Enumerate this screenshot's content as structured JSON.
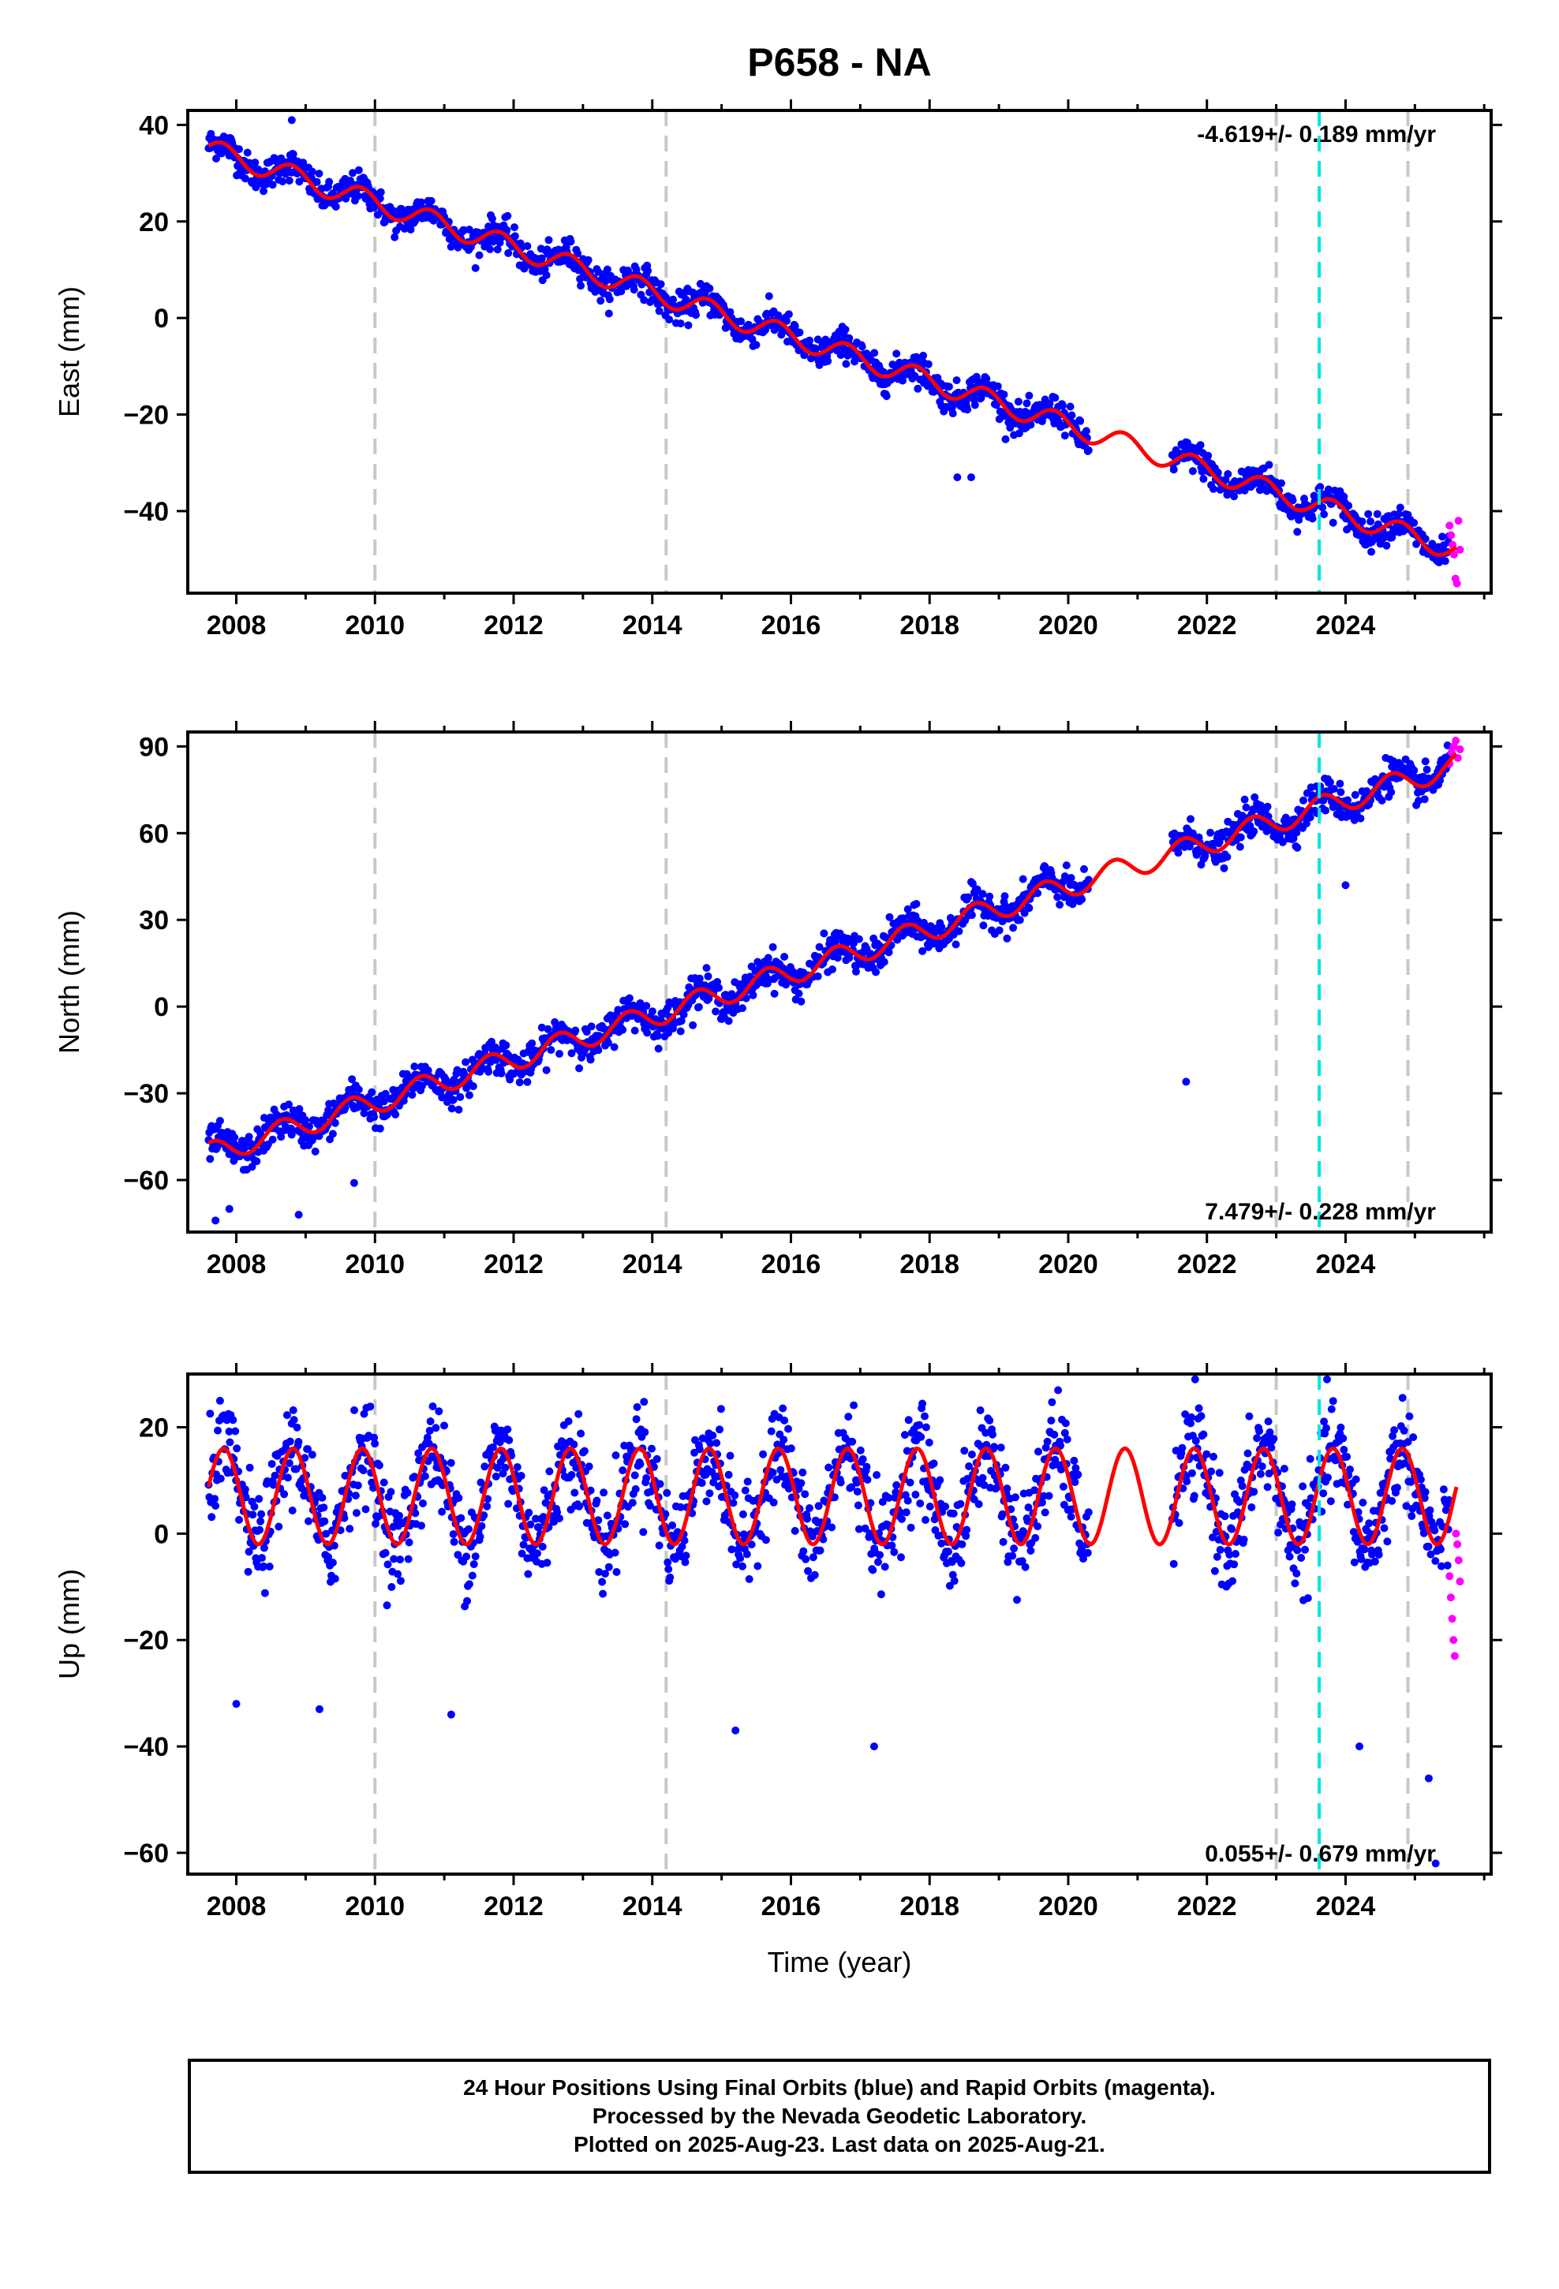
{
  "title": "P658 - NA",
  "caption": [
    "24 Hour Positions Using Final Orbits (blue) and Rapid Orbits (magenta).",
    "Processed by the Nevada Geodetic Laboratory.",
    "Plotted on 2025-Aug-23. Last data on 2025-Aug-21."
  ],
  "colors": {
    "final": "#0000ff",
    "rapid": "#ff00ff",
    "model": "#ff0000",
    "event_gray": "#c8c8c8",
    "event_cyan": "#00e5e5"
  },
  "chart_data": [
    {
      "type": "scatter",
      "ylabel": "East (mm)",
      "xlabel": "",
      "xlim": [
        2007.3,
        2026.1
      ],
      "ylim": [
        -57,
        43
      ],
      "yticks": [
        40,
        20,
        0,
        -20,
        -40
      ],
      "xticks": [
        2008,
        2010,
        2012,
        2014,
        2016,
        2018,
        2020,
        2022,
        2024
      ],
      "rate_annotation": "-4.619+/- 0.189 mm/yr",
      "rate_position": "top-right",
      "event_lines_gray": [
        2010.0,
        2014.2,
        2023.0,
        2024.9
      ],
      "event_lines_cyan": [
        2023.62
      ],
      "model": {
        "start": 2007.6,
        "end": 2025.6,
        "value_at_start": 35.0,
        "rate": -4.619,
        "amp_annual": 2.2,
        "phase": 0.3
      },
      "final_orbits_series": {
        "coverage": [
          [
            2007.6,
            2020.3
          ],
          [
            2021.5,
            2025.5
          ]
        ],
        "noise_sd": 1.6,
        "outliers": [
          [
            2008.8,
            41
          ],
          [
            2018.4,
            -33
          ],
          [
            2018.6,
            -33
          ]
        ]
      },
      "rapid_orbits_series": {
        "x_range": [
          2025.5,
          2025.65
        ],
        "values": [
          -43,
          -45,
          -47,
          -49,
          -54,
          -55,
          -42,
          -48
        ]
      }
    },
    {
      "type": "scatter",
      "ylabel": "North (mm)",
      "xlabel": "",
      "xlim": [
        2007.3,
        2026.1
      ],
      "ylim": [
        -78,
        95
      ],
      "yticks": [
        90,
        60,
        30,
        0,
        -30,
        -60
      ],
      "xticks": [
        2008,
        2010,
        2012,
        2014,
        2016,
        2018,
        2020,
        2022,
        2024
      ],
      "rate_annotation": "7.479+/- 0.228 mm/yr",
      "rate_position": "bottom-right",
      "event_lines_gray": [
        2010.0,
        2014.2,
        2023.0,
        2024.9
      ],
      "event_lines_cyan": [
        2023.62
      ],
      "model": {
        "start": 2007.6,
        "end": 2025.6,
        "value_at_start": -51.0,
        "rate": 7.479,
        "amp_annual": 4.0,
        "phase": 1.2
      },
      "final_orbits_series": {
        "coverage": [
          [
            2007.6,
            2020.3
          ],
          [
            2021.5,
            2025.5
          ]
        ],
        "noise_sd": 3.0,
        "outliers": [
          [
            2007.7,
            -74
          ],
          [
            2007.9,
            -70
          ],
          [
            2008.9,
            -72
          ],
          [
            2009.7,
            -61
          ],
          [
            2021.7,
            -26
          ],
          [
            2024.0,
            42
          ]
        ]
      },
      "rapid_orbits_series": {
        "x_range": [
          2025.5,
          2025.65
        ],
        "values": [
          84,
          88,
          90,
          92,
          86,
          89
        ]
      }
    },
    {
      "type": "scatter",
      "ylabel": "Up (mm)",
      "xlabel": "Time (year)",
      "xlim": [
        2007.3,
        2026.1
      ],
      "ylim": [
        -64,
        30
      ],
      "yticks": [
        20,
        0,
        -20,
        -40,
        -60
      ],
      "xticks": [
        2008,
        2010,
        2012,
        2014,
        2016,
        2018,
        2020,
        2022,
        2024
      ],
      "rate_annotation": "0.055+/- 0.679 mm/yr",
      "rate_position": "bottom-right",
      "event_lines_gray": [
        2010.0,
        2014.2,
        2023.0,
        2024.9
      ],
      "event_lines_cyan": [
        2023.62
      ],
      "model": {
        "start": 2007.6,
        "end": 2025.6,
        "value_at_start": 7.0,
        "rate": 0.0,
        "amp_annual": 9.0,
        "phase": 0.2
      },
      "final_orbits_series": {
        "coverage": [
          [
            2007.6,
            2020.3
          ],
          [
            2021.5,
            2025.5
          ]
        ],
        "noise_sd": 4.5,
        "outliers": [
          [
            2008.0,
            -32
          ],
          [
            2009.2,
            -33
          ],
          [
            2011.1,
            -34
          ],
          [
            2015.2,
            -37
          ],
          [
            2017.2,
            -40
          ],
          [
            2024.2,
            -40
          ],
          [
            2025.2,
            -46
          ],
          [
            2025.3,
            -62
          ]
        ]
      },
      "rapid_orbits_series": {
        "x_range": [
          2025.5,
          2025.65
        ],
        "values": [
          -8,
          -12,
          -16,
          -20,
          -23,
          0,
          -2,
          -5,
          -9
        ]
      }
    }
  ]
}
